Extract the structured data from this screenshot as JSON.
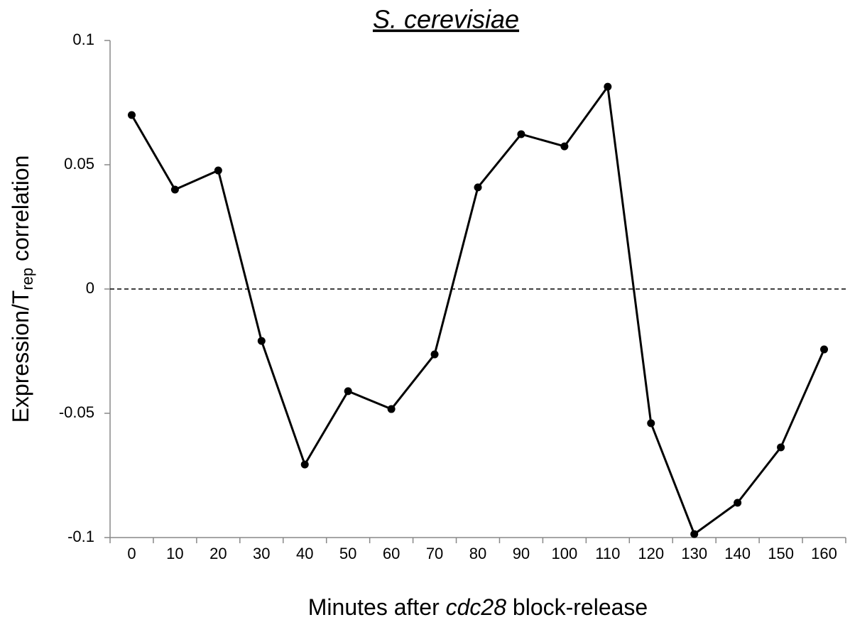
{
  "chart_data": {
    "type": "line",
    "title": "S. cerevisiae",
    "x_label": [
      "Minutes after ",
      "cdc28",
      " block-release"
    ],
    "y_label": [
      "Expression/T",
      "rep",
      " correlation"
    ],
    "categories": [
      "0",
      "10",
      "20",
      "30",
      "40",
      "50",
      "60",
      "70",
      "80",
      "90",
      "100",
      "110",
      "120",
      "130",
      "140",
      "150",
      "160"
    ],
    "series": [
      {
        "color": "#000000",
        "values": [
          0.07,
          0.04,
          0.0477,
          -0.0209,
          -0.0706,
          -0.0411,
          -0.0483,
          -0.0263,
          0.0409,
          0.0623,
          0.0574,
          0.0814,
          -0.054,
          -0.0986,
          -0.086,
          -0.0637,
          -0.0243
        ]
      }
    ],
    "ylim": [
      -0.1,
      0.1
    ],
    "yticks": [
      -0.1,
      -0.05,
      0,
      0.05,
      0.1
    ],
    "zero_line": true,
    "grid": false
  }
}
